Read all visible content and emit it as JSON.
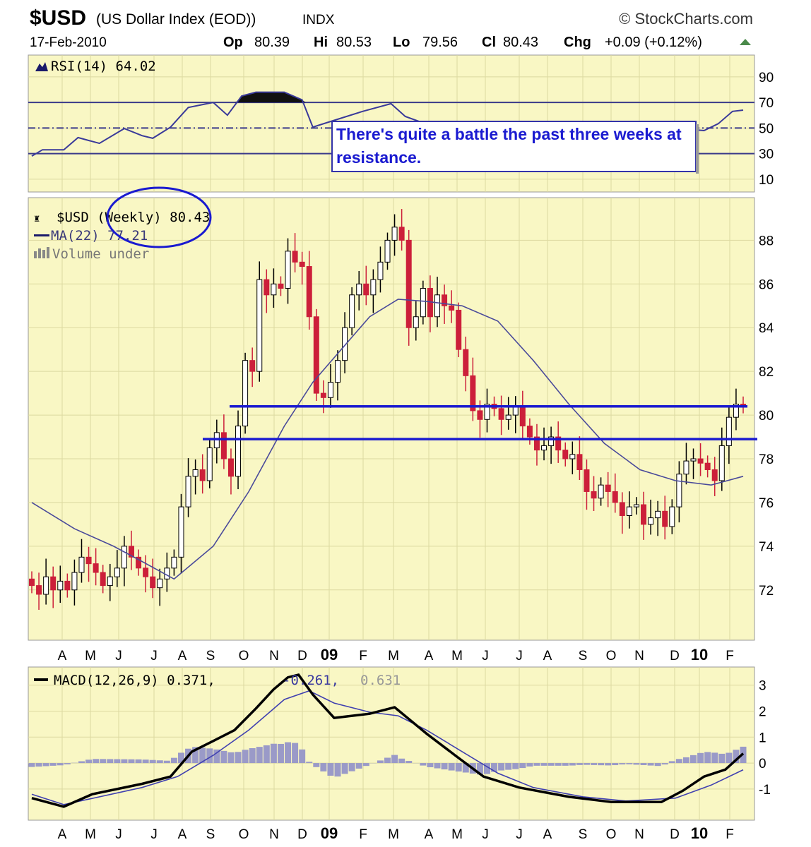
{
  "header": {
    "symbol": "$USD",
    "name": "(US Dollar Index (EOD))",
    "exchange": "INDX",
    "copyright": "© StockCharts.com",
    "date": "17-Feb-2010",
    "op_label": "Op",
    "op": "80.39",
    "hi_label": "Hi",
    "hi": "80.53",
    "lo_label": "Lo",
    "lo": "79.56",
    "cl_label": "Cl",
    "cl": "80.43",
    "chg_label": "Chg",
    "chg": "+0.09 (+0.12%)"
  },
  "colors": {
    "panel_bg": "#f9f7c4",
    "grid": "#dcd9a0",
    "up": "#ffffff",
    "down": "#cc1f3a",
    "annotation": "#1a1ad0",
    "ma": "#4a4a9a",
    "histogram": "#9a9ac8"
  },
  "chart_data": [
    {
      "type": "line",
      "title": "RSI(14) 64.02",
      "ylim": [
        0,
        107
      ],
      "yticks": [
        90,
        70,
        50,
        30,
        10
      ],
      "reference_lines": [
        70,
        50,
        30
      ],
      "x_unit": "week",
      "rsi": [
        [
          0,
          28
        ],
        [
          1.5,
          33
        ],
        [
          4.5,
          33
        ],
        [
          6.5,
          42.5
        ],
        [
          9.5,
          38
        ],
        [
          13,
          49.6
        ],
        [
          15.5,
          44
        ],
        [
          17,
          42
        ],
        [
          19.5,
          50.7
        ],
        [
          22,
          66
        ],
        [
          25.5,
          70
        ],
        [
          27.5,
          60
        ],
        [
          29.5,
          75
        ],
        [
          31.5,
          78
        ],
        [
          35.5,
          78
        ],
        [
          38,
          72
        ],
        [
          39.5,
          50.7
        ],
        [
          42.5,
          56
        ],
        [
          46.5,
          63
        ],
        [
          50.5,
          69
        ],
        [
          52.5,
          59
        ],
        [
          56,
          52
        ],
        [
          60,
          53
        ],
        [
          64,
          50
        ],
        [
          70,
          50
        ],
        [
          80,
          50
        ],
        [
          90,
          50
        ],
        [
          94.5,
          48
        ],
        [
          96.5,
          53.4
        ],
        [
          98.5,
          63
        ],
        [
          100,
          64
        ]
      ]
    },
    {
      "type": "candlestick",
      "legend": [
        "$USD (Weekly) 80.43",
        "MA(22) 77.21",
        "Volume under"
      ],
      "ylim": [
        69.7,
        89.95
      ],
      "yticks": [
        88,
        86,
        84,
        82,
        80,
        78,
        76,
        74,
        72
      ],
      "close": [
        72.2,
        71.8,
        72.6,
        72.0,
        72.4,
        72.0,
        72.8,
        73.5,
        73.2,
        72.8,
        72.2,
        72.6,
        73.0,
        74.0,
        73.5,
        73.0,
        72.6,
        72.1,
        72.5,
        73.0,
        73.5,
        75.8,
        77.2,
        77.5,
        77.0,
        78.5,
        79.2,
        78.0,
        77.2,
        79.5,
        82.5,
        82.0,
        86.2,
        85.5,
        86.0,
        85.8,
        87.5,
        87.0,
        86.8,
        84.5,
        81.0,
        80.8,
        81.5,
        82.5,
        84.0,
        85.5,
        86.0,
        85.5,
        86.2,
        87.0,
        88.0,
        88.6,
        88.0,
        84.0,
        84.5,
        85.8,
        84.5,
        85.5,
        85.0,
        84.8,
        83.0,
        81.8,
        80.2,
        79.8,
        80.5,
        80.3,
        79.8,
        80.0,
        80.4,
        79.5,
        79.0,
        78.4,
        78.6,
        79.0,
        78.4,
        78.0,
        78.2,
        77.5,
        76.5,
        76.2,
        76.8,
        76.5,
        76.0,
        75.4,
        75.8,
        75.9,
        75.0,
        75.3,
        75.6,
        74.9,
        75.8,
        77.3,
        77.9,
        78.0,
        77.8,
        77.5,
        77.0,
        78.6,
        79.9,
        80.5,
        80.43
      ],
      "ma22": [
        [
          0,
          76
        ],
        [
          6,
          74.8
        ],
        [
          11.5,
          74
        ],
        [
          15.5,
          73.3
        ],
        [
          20,
          72.5
        ],
        [
          25.5,
          74
        ],
        [
          30.5,
          76.5
        ],
        [
          35.5,
          79.5
        ],
        [
          39.5,
          81.5
        ],
        [
          43.5,
          83
        ],
        [
          47.5,
          84.5
        ],
        [
          51.5,
          85.3
        ],
        [
          55.5,
          85.2
        ],
        [
          60.5,
          85
        ],
        [
          65.5,
          84.3
        ],
        [
          70.5,
          82.5
        ],
        [
          75.5,
          80.5
        ],
        [
          80.5,
          78.7
        ],
        [
          85.5,
          77.5
        ],
        [
          90.5,
          77
        ],
        [
          95.5,
          76.8
        ],
        [
          100,
          77.2
        ]
      ],
      "resistance_lines": [
        80.4,
        78.9
      ],
      "annotation": "There's quite a battle the past three weeks at resistance."
    },
    {
      "type": "line",
      "title_parts": [
        "MACD(12,26,9) 0.371,",
        "-0.261,",
        "0.631"
      ],
      "ylim": [
        -2.2,
        3.7
      ],
      "yticks": [
        3,
        2,
        1,
        0,
        -1
      ],
      "macd": [
        [
          0,
          -1.35
        ],
        [
          4.5,
          -1.68
        ],
        [
          8.5,
          -1.2
        ],
        [
          15.5,
          -0.8
        ],
        [
          19.5,
          -0.52
        ],
        [
          22.5,
          0.44
        ],
        [
          25.5,
          0.85
        ],
        [
          28.5,
          1.27
        ],
        [
          31.5,
          2.1
        ],
        [
          34,
          2.84
        ],
        [
          36,
          3.3
        ],
        [
          37.5,
          3.4
        ],
        [
          39.5,
          2.64
        ],
        [
          42.5,
          1.74
        ],
        [
          47.5,
          1.9
        ],
        [
          51,
          2.15
        ],
        [
          55.5,
          1.13
        ],
        [
          59.5,
          0.3
        ],
        [
          63.5,
          -0.52
        ],
        [
          68.5,
          -0.94
        ],
        [
          75.5,
          -1.3
        ],
        [
          81.5,
          -1.5
        ],
        [
          88.5,
          -1.5
        ],
        [
          91.5,
          -1.07
        ],
        [
          94.5,
          -0.52
        ],
        [
          97.5,
          -0.25
        ],
        [
          100,
          0.37
        ]
      ],
      "signal": [
        [
          0,
          -1.2
        ],
        [
          4.5,
          -1.6
        ],
        [
          15.5,
          -0.94
        ],
        [
          20.5,
          -0.52
        ],
        [
          25.5,
          0.3
        ],
        [
          30.5,
          1.27
        ],
        [
          35.5,
          2.45
        ],
        [
          39,
          2.78
        ],
        [
          42.5,
          2.31
        ],
        [
          47.5,
          1.96
        ],
        [
          51.5,
          1.82
        ],
        [
          55.5,
          1.27
        ],
        [
          60.5,
          0.44
        ],
        [
          65.5,
          -0.39
        ],
        [
          70.5,
          -0.94
        ],
        [
          77.5,
          -1.3
        ],
        [
          83.5,
          -1.46
        ],
        [
          90.5,
          -1.35
        ],
        [
          95.5,
          -0.85
        ],
        [
          100,
          -0.26
        ]
      ]
    }
  ],
  "x_ticks": [
    "A",
    "M",
    "J",
    "J",
    "A",
    "S",
    "O",
    "N",
    "D",
    "09",
    "F",
    "M",
    "A",
    "M",
    "J",
    "J",
    "A",
    "S",
    "O",
    "N",
    "D",
    "10",
    "F"
  ]
}
